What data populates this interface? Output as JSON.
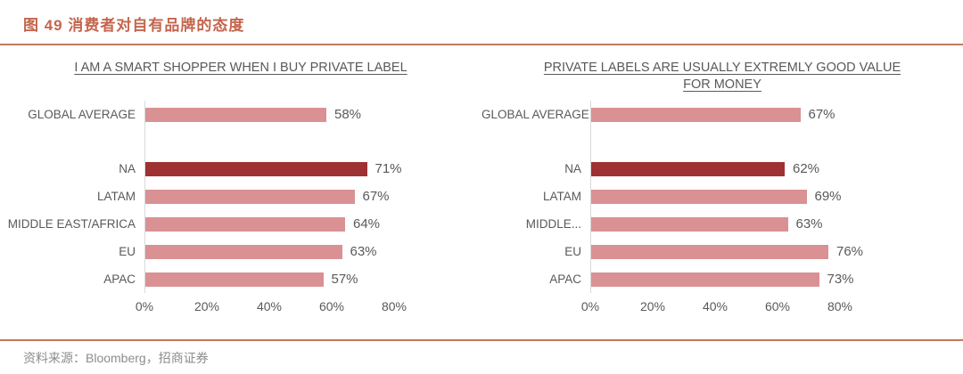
{
  "figure": {
    "title": "图 49 消费者对自有品牌的态度",
    "source": "资料来源：Bloomberg，招商证券"
  },
  "colors": {
    "accent": "#C4654C",
    "rule": "#C07A5C",
    "bar": "#D99194",
    "bar_highlight": "#9E3132",
    "text": "#595959",
    "source_text": "#8C8C8C",
    "axis_line": "#D9D9D9"
  },
  "chart_data": [
    {
      "type": "bar",
      "orientation": "horizontal",
      "title": "I AM A SMART SHOPPER WHEN I BUY PRIVATE LABEL",
      "categories": [
        "GLOBAL AVERAGE",
        "NA",
        "LATAM",
        "MIDDLE EAST/AFRICA",
        "EU",
        "APAC"
      ],
      "values": [
        58,
        71,
        67,
        64,
        63,
        57
      ],
      "value_labels": [
        "58%",
        "71%",
        "67%",
        "64%",
        "63%",
        "57%"
      ],
      "highlight_category": "NA",
      "gap_after_first_category": true,
      "xlim": [
        0,
        80
      ],
      "xticks": [
        "0%",
        "20%",
        "40%",
        "60%",
        "80%"
      ],
      "grid": false,
      "legend": "none"
    },
    {
      "type": "bar",
      "orientation": "horizontal",
      "title": "PRIVATE LABELS ARE USUALLY EXTREMLY GOOD VALUE FOR MONEY",
      "categories": [
        "GLOBAL AVERAGE",
        "NA",
        "LATAM",
        "MIDDLE...",
        "EU",
        "APAC"
      ],
      "values": [
        67,
        62,
        69,
        63,
        76,
        73
      ],
      "value_labels": [
        "67%",
        "62%",
        "69%",
        "63%",
        "76%",
        "73%"
      ],
      "highlight_category": "NA",
      "gap_after_first_category": true,
      "xlim": [
        0,
        80
      ],
      "xticks": [
        "0%",
        "20%",
        "40%",
        "60%",
        "80%"
      ],
      "grid": false,
      "legend": "none"
    }
  ]
}
